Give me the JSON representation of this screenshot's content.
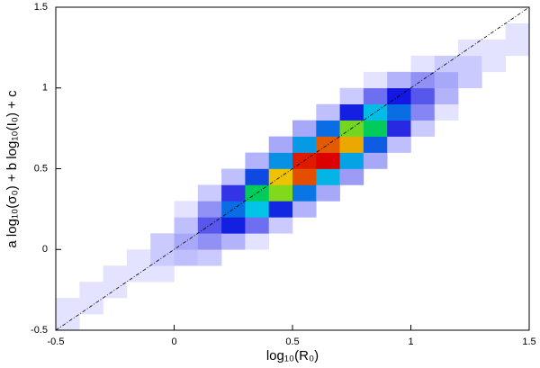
{
  "chart_data": {
    "type": "hist2d",
    "xlabel": "log₁₀(R₀)",
    "ylabel": "a log₁₀(σ₀) + b log₁₀(I₀) + c",
    "xlim": [
      -0.5,
      1.5
    ],
    "ylim": [
      -0.5,
      1.5
    ],
    "xticks": [
      -0.5,
      0,
      0.5,
      1,
      1.5
    ],
    "yticks": [
      -0.5,
      0,
      0.5,
      1,
      1.5
    ],
    "xbins": [
      -0.5,
      -0.4,
      -0.3,
      -0.2,
      -0.1,
      0,
      0.1,
      0.2,
      0.3,
      0.4,
      0.5,
      0.6,
      0.7,
      0.8,
      0.9,
      1,
      1.1,
      1.2,
      1.3,
      1.4,
      1.5
    ],
    "ybins": [
      -0.5,
      -0.4,
      -0.3,
      -0.2,
      -0.1,
      0,
      0.1,
      0.2,
      0.3,
      0.4,
      0.5,
      0.6,
      0.7,
      0.8,
      0.9,
      1,
      1.1,
      1.2,
      1.3,
      1.4,
      1.5
    ],
    "z": [
      [
        1,
        1,
        0,
        0,
        0,
        0,
        0,
        0,
        0,
        0,
        0,
        0,
        0,
        0,
        0,
        0,
        0,
        0,
        0,
        0
      ],
      [
        0,
        1,
        1,
        0,
        0,
        0,
        0,
        0,
        0,
        0,
        0,
        0,
        0,
        0,
        0,
        0,
        0,
        0,
        0,
        0
      ],
      [
        0,
        0,
        1,
        1,
        0,
        0,
        0,
        0,
        0,
        0,
        0,
        0,
        0,
        0,
        0,
        0,
        0,
        0,
        0,
        0
      ],
      [
        0,
        0,
        0,
        1,
        1,
        0,
        0,
        0,
        0,
        0,
        0,
        0,
        0,
        0,
        0,
        0,
        0,
        0,
        0,
        0
      ],
      [
        0,
        0,
        0,
        1,
        2,
        2,
        0,
        0,
        0,
        0,
        0,
        0,
        0,
        0,
        0,
        0,
        0,
        0,
        0,
        0
      ],
      [
        0,
        0,
        0,
        0,
        3,
        5,
        3,
        1,
        0,
        0,
        0,
        0,
        0,
        0,
        0,
        0,
        0,
        0,
        0,
        0
      ],
      [
        0,
        0,
        0,
        0,
        2,
        7,
        12,
        7,
        2,
        0,
        0,
        0,
        0,
        0,
        0,
        0,
        0,
        0,
        0,
        0
      ],
      [
        0,
        0,
        0,
        0,
        0,
        4,
        19,
        28,
        15,
        3,
        0,
        0,
        0,
        0,
        0,
        0,
        0,
        0,
        0,
        0
      ],
      [
        0,
        0,
        0,
        0,
        0,
        1,
        10,
        38,
        51,
        24,
        4,
        0,
        0,
        0,
        0,
        0,
        0,
        0,
        0,
        0
      ],
      [
        0,
        0,
        0,
        0,
        0,
        0,
        2,
        20,
        63,
        74,
        32,
        5,
        0,
        0,
        0,
        0,
        0,
        0,
        0,
        0
      ],
      [
        0,
        0,
        0,
        0,
        0,
        0,
        0,
        4,
        29,
        83,
        87,
        33,
        5,
        0,
        0,
        0,
        0,
        0,
        0,
        0
      ],
      [
        0,
        0,
        0,
        0,
        0,
        0,
        0,
        0,
        5,
        36,
        89,
        82,
        28,
        3,
        0,
        0,
        0,
        0,
        0,
        0
      ],
      [
        0,
        0,
        0,
        0,
        0,
        0,
        0,
        0,
        0,
        6,
        34,
        76,
        62,
        19,
        2,
        0,
        0,
        0,
        0,
        0
      ],
      [
        0,
        0,
        0,
        0,
        0,
        0,
        0,
        0,
        0,
        0,
        5,
        26,
        51,
        37,
        10,
        1,
        0,
        0,
        0,
        0
      ],
      [
        0,
        0,
        0,
        0,
        0,
        0,
        0,
        0,
        0,
        0,
        0,
        3,
        16,
        28,
        18,
        4,
        0,
        0,
        0,
        0
      ],
      [
        0,
        0,
        0,
        0,
        0,
        0,
        0,
        0,
        0,
        0,
        0,
        0,
        2,
        8,
        12,
        7,
        1,
        0,
        0,
        0
      ],
      [
        0,
        0,
        0,
        0,
        0,
        0,
        0,
        0,
        0,
        0,
        0,
        0,
        0,
        1,
        4,
        5,
        2,
        0,
        0,
        0
      ],
      [
        0,
        0,
        0,
        0,
        0,
        0,
        0,
        0,
        0,
        0,
        0,
        0,
        0,
        0,
        0,
        2,
        2,
        1,
        0,
        0
      ],
      [
        0,
        0,
        0,
        0,
        0,
        0,
        0,
        0,
        0,
        0,
        0,
        0,
        0,
        0,
        0,
        0,
        1,
        1,
        0,
        0
      ],
      [
        0,
        0,
        0,
        0,
        0,
        0,
        0,
        0,
        0,
        0,
        0,
        0,
        0,
        0,
        0,
        0,
        0,
        1,
        1,
        0
      ]
    ]
  }
}
